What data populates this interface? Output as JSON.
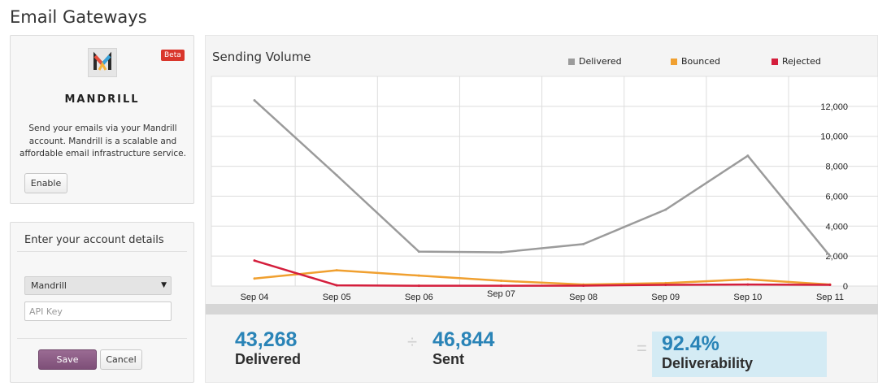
{
  "page": {
    "title": "Email Gateways"
  },
  "gateway": {
    "brand": "MANDRILL",
    "badge": "Beta",
    "description": "Send your emails via your Mandrill account. Mandrill is a scalable and affordable email infrastructure service.",
    "enable_label": "Enable",
    "logo_icon": "mandrill-logo-icon"
  },
  "account": {
    "heading": "Enter your account details",
    "provider_selected": "Mandrill",
    "api_key_placeholder": "API Key",
    "save_label": "Save",
    "cancel_label": "Cancel",
    "save_color": "#7e4f78"
  },
  "chart_data": {
    "type": "line",
    "title": "Sending Volume",
    "categories": [
      "Sep 04",
      "Sep 05",
      "Sep 06",
      "Sep 07",
      "Sep 08",
      "Sep 09",
      "Sep 10",
      "Sep 11"
    ],
    "series": [
      {
        "name": "Delivered",
        "color": "#9b9b9b",
        "values": [
          12400,
          7400,
          2300,
          2250,
          2800,
          5100,
          8700,
          2000
        ]
      },
      {
        "name": "Bounced",
        "color": "#f0a030",
        "values": [
          500,
          1050,
          700,
          350,
          100,
          200,
          450,
          100
        ]
      },
      {
        "name": "Rejected",
        "color": "#d41e3c",
        "values": [
          1700,
          50,
          20,
          20,
          30,
          80,
          100,
          80
        ]
      }
    ],
    "y_ticks": [
      "0",
      "2,000",
      "4,000",
      "6,000",
      "8,000",
      "10,000",
      "12,000"
    ],
    "ylim": [
      0,
      14000
    ],
    "legend_position": "top-right",
    "grid": true
  },
  "stats": {
    "delivered_value": "43,268",
    "delivered_label": "Delivered",
    "divide_symbol": "÷",
    "sent_value": "46,844",
    "sent_label": "Sent",
    "equals_symbol": "=",
    "deliverability_value": "92.4%",
    "deliverability_label": "Deliverability"
  }
}
